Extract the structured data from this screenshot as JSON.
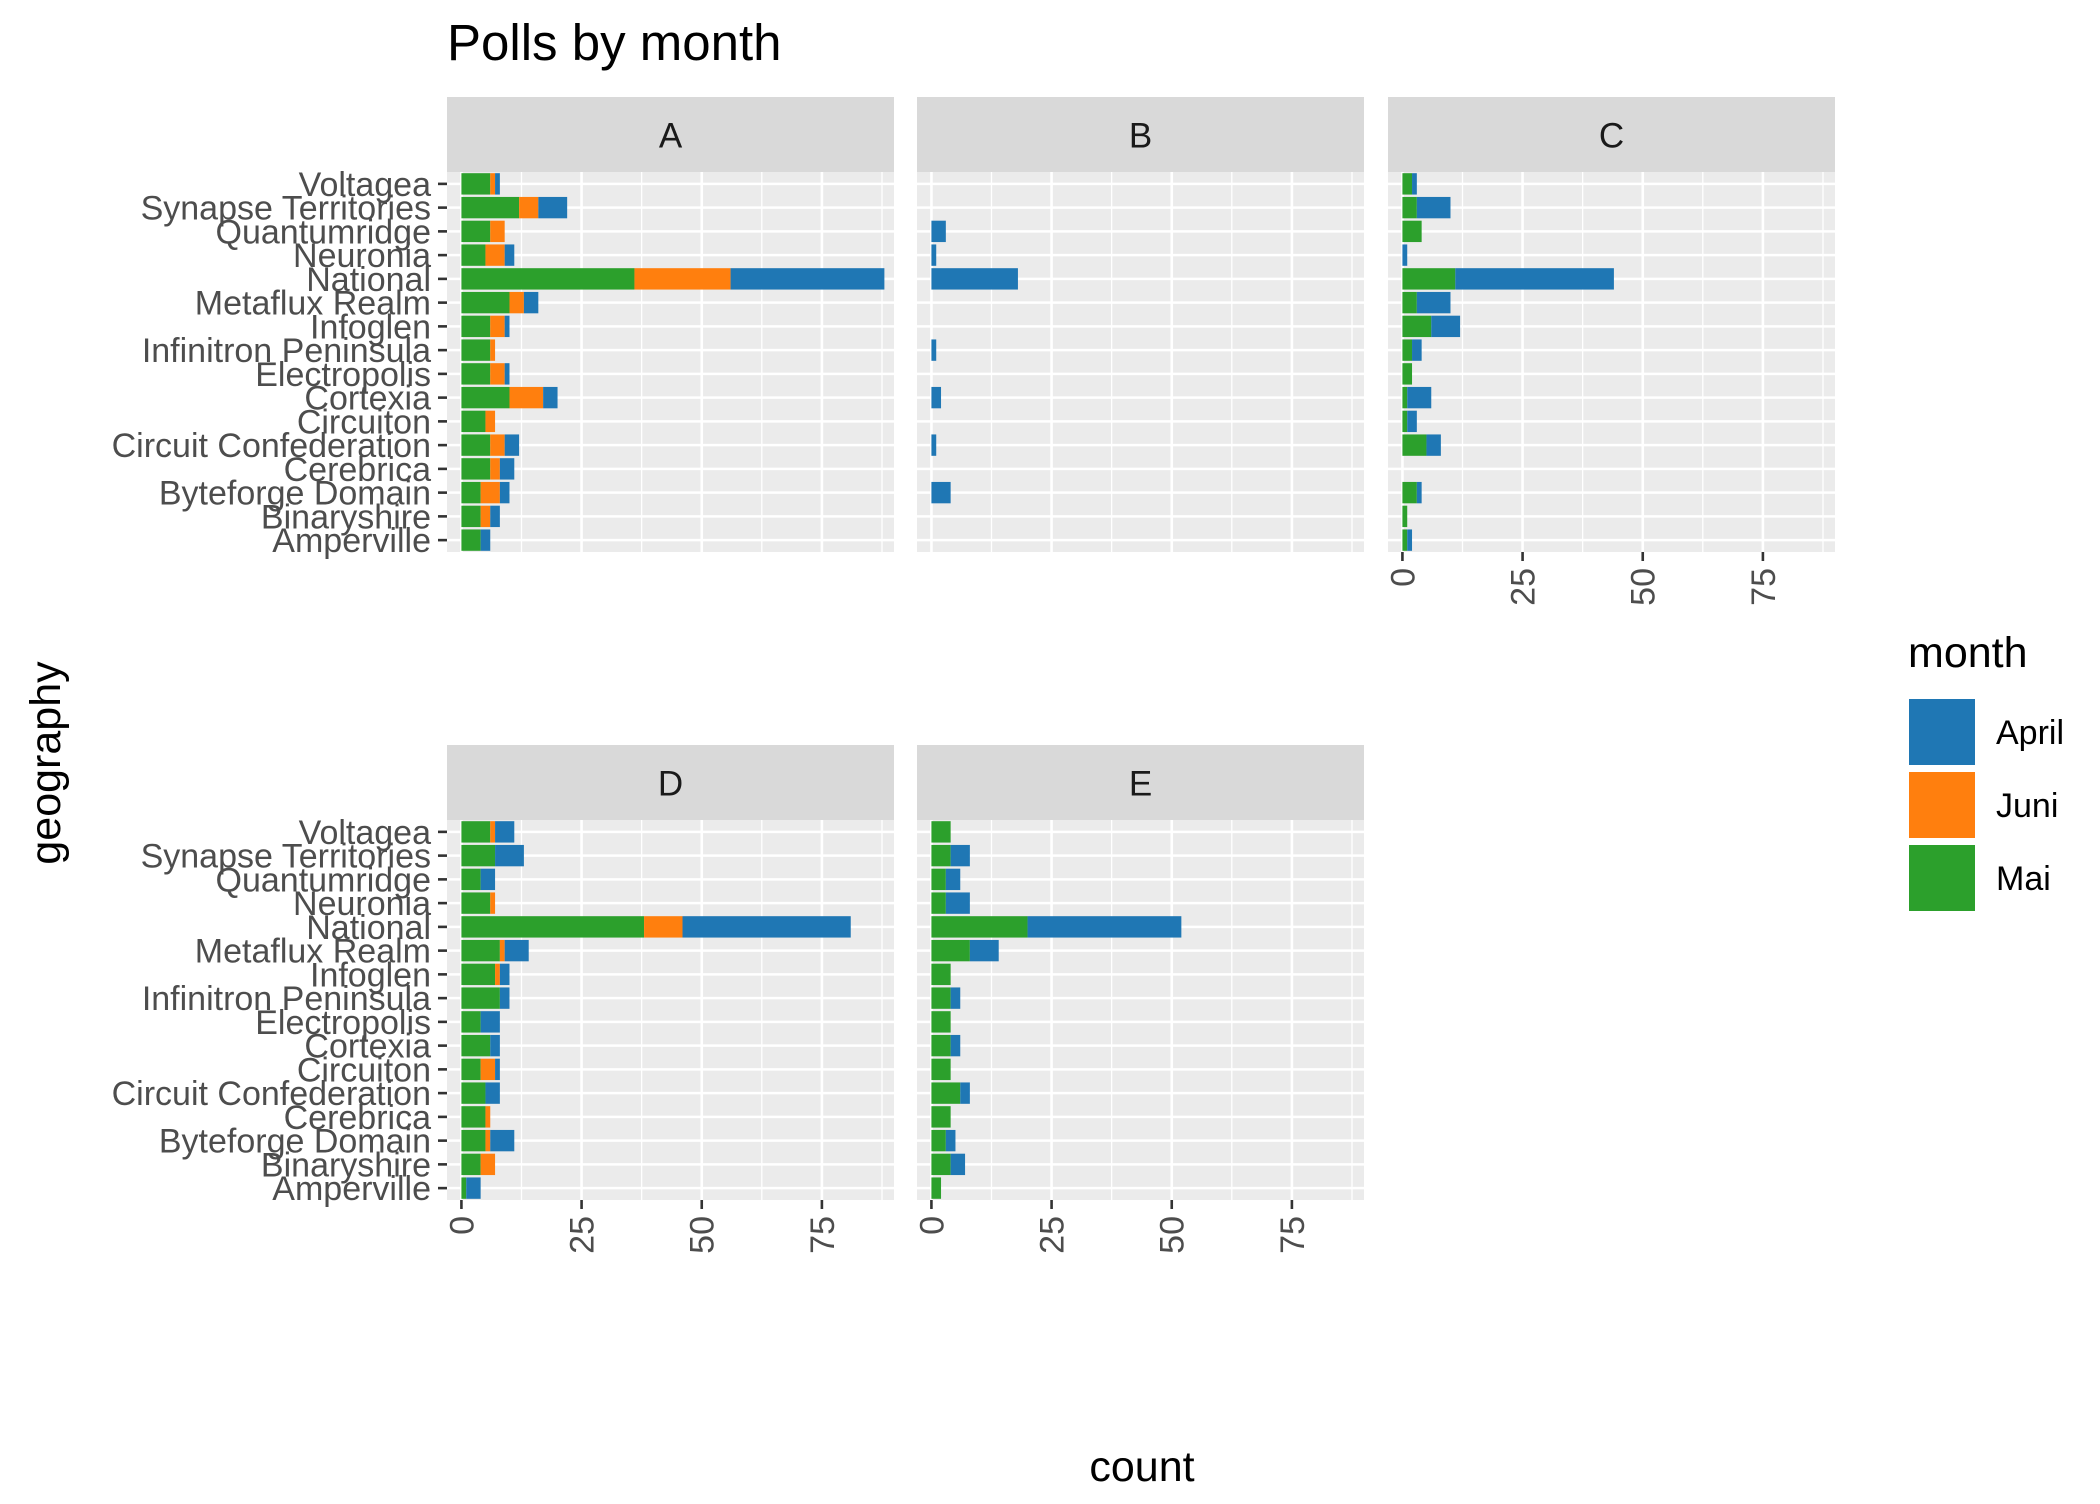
{
  "colors": {
    "April": "#1f77b4",
    "Juni": "#ff7f0e",
    "Mai": "#2ca02c",
    "panel_bg": "#ebebeb",
    "strip_bg": "#d9d9d9",
    "grid": "#ffffff",
    "text": "#000000",
    "tick_text": "#4d4d4d"
  },
  "chart_data": {
    "type": "bar",
    "orientation": "horizontal",
    "stacked": true,
    "facet_by": "panel",
    "title": "Polls by month",
    "xlabel": "count",
    "ylabel": "geography",
    "xlim": [
      -3,
      90
    ],
    "xticks": [
      0,
      25,
      50,
      75
    ],
    "grid": true,
    "legend": {
      "title": "month",
      "position": "right",
      "entries": [
        "April",
        "Juni",
        "Mai"
      ]
    },
    "stack_order": [
      "Mai",
      "Juni",
      "April"
    ],
    "categories": [
      "Voltagea",
      "Synapse Territories",
      "Quantumridge",
      "Neuronia",
      "National",
      "Metaflux Realm",
      "Infoglen",
      "Infinitron Peninsula",
      "Electropolis",
      "Cortexia",
      "Circuiton",
      "Circuit Confederation",
      "Cerebrica",
      "Byteforge Domain",
      "Binaryshire",
      "Amperville"
    ],
    "panels": [
      {
        "label": "A",
        "series": [
          {
            "name": "Mai",
            "values": [
              6,
              12,
              6,
              5,
              36,
              10,
              6,
              6,
              6,
              10,
              5,
              6,
              6,
              4,
              4,
              4
            ]
          },
          {
            "name": "Juni",
            "values": [
              1,
              4,
              3,
              4,
              20,
              3,
              3,
              1,
              3,
              7,
              2,
              3,
              2,
              4,
              2,
              0
            ]
          },
          {
            "name": "April",
            "values": [
              1,
              6,
              0,
              2,
              32,
              3,
              1,
              0,
              1,
              3,
              0,
              3,
              3,
              2,
              2,
              2
            ]
          }
        ]
      },
      {
        "label": "B",
        "series": [
          {
            "name": "Mai",
            "values": [
              0,
              0,
              0,
              0,
              0,
              0,
              0,
              0,
              0,
              0,
              0,
              0,
              0,
              0,
              0,
              0
            ]
          },
          {
            "name": "Juni",
            "values": [
              0,
              0,
              0,
              0,
              0,
              0,
              0,
              0,
              0,
              0,
              0,
              0,
              0,
              0,
              0,
              0
            ]
          },
          {
            "name": "April",
            "values": [
              0,
              0,
              3,
              1,
              18,
              0,
              0,
              1,
              0,
              2,
              0,
              1,
              0,
              4,
              0,
              0
            ]
          }
        ]
      },
      {
        "label": "C",
        "series": [
          {
            "name": "Mai",
            "values": [
              2,
              3,
              4,
              0,
              11,
              3,
              6,
              2,
              2,
              1,
              1,
              5,
              0,
              3,
              1,
              1
            ]
          },
          {
            "name": "Juni",
            "values": [
              0,
              0,
              0,
              0,
              0,
              0,
              0,
              0,
              0,
              0,
              0,
              0,
              0,
              0,
              0,
              0
            ]
          },
          {
            "name": "April",
            "values": [
              1,
              7,
              0,
              1,
              33,
              7,
              6,
              2,
              0,
              5,
              2,
              3,
              0,
              1,
              0,
              1
            ]
          }
        ]
      },
      {
        "label": "D",
        "series": [
          {
            "name": "Mai",
            "values": [
              6,
              7,
              4,
              6,
              38,
              8,
              7,
              8,
              4,
              6,
              4,
              5,
              5,
              5,
              4,
              1
            ]
          },
          {
            "name": "Juni",
            "values": [
              1,
              0,
              0,
              1,
              8,
              1,
              1,
              0,
              0,
              0,
              3,
              0,
              1,
              1,
              3,
              0
            ]
          },
          {
            "name": "April",
            "values": [
              4,
              6,
              3,
              0,
              35,
              5,
              2,
              2,
              4,
              2,
              1,
              3,
              0,
              5,
              0,
              3
            ]
          }
        ]
      },
      {
        "label": "E",
        "series": [
          {
            "name": "Mai",
            "values": [
              4,
              4,
              3,
              3,
              20,
              8,
              4,
              4,
              4,
              4,
              4,
              6,
              4,
              3,
              4,
              2
            ]
          },
          {
            "name": "Juni",
            "values": [
              0,
              0,
              0,
              0,
              0,
              0,
              0,
              0,
              0,
              0,
              0,
              0,
              0,
              0,
              0,
              0
            ]
          },
          {
            "name": "April",
            "values": [
              0,
              4,
              3,
              5,
              32,
              6,
              0,
              2,
              0,
              2,
              0,
              2,
              0,
              2,
              3,
              0
            ]
          }
        ]
      }
    ]
  }
}
